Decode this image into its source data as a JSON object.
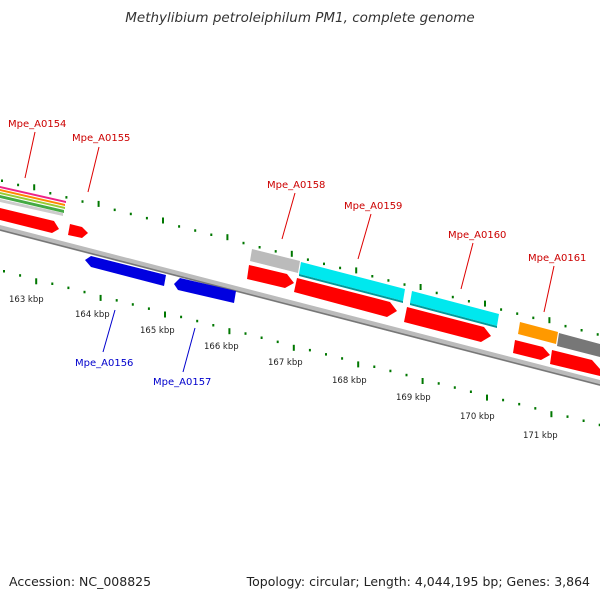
{
  "title": "Methylibium petroleiphilum PM1, complete genome",
  "footer": {
    "accession": "Accession: NC_008825",
    "topology": "Topology: circular; Length: 4,044,195 bp; Genes: 3,864"
  },
  "colors": {
    "forward_strand": "#ff0000",
    "reverse_strand": "#0000e0",
    "forward_label": "#cc0000",
    "reverse_label": "#0000cc",
    "tick": "#007700",
    "backbone": "#888888"
  },
  "scale_labels": [
    "163 kbp",
    "164 kbp",
    "165 kbp",
    "166 kbp",
    "167 kbp",
    "168 kbp",
    "169 kbp",
    "170 kbp",
    "171 kbp"
  ],
  "genes": [
    {
      "label": "Mpe_A0154",
      "strand": "forward"
    },
    {
      "label": "Mpe_A0155",
      "strand": "forward"
    },
    {
      "label": "Mpe_A0156",
      "strand": "reverse"
    },
    {
      "label": "Mpe_A0157",
      "strand": "reverse"
    },
    {
      "label": "Mpe_A0158",
      "strand": "forward"
    },
    {
      "label": "Mpe_A0159",
      "strand": "forward"
    },
    {
      "label": "Mpe_A0160",
      "strand": "forward"
    },
    {
      "label": "Mpe_A0161",
      "strand": "forward"
    }
  ]
}
